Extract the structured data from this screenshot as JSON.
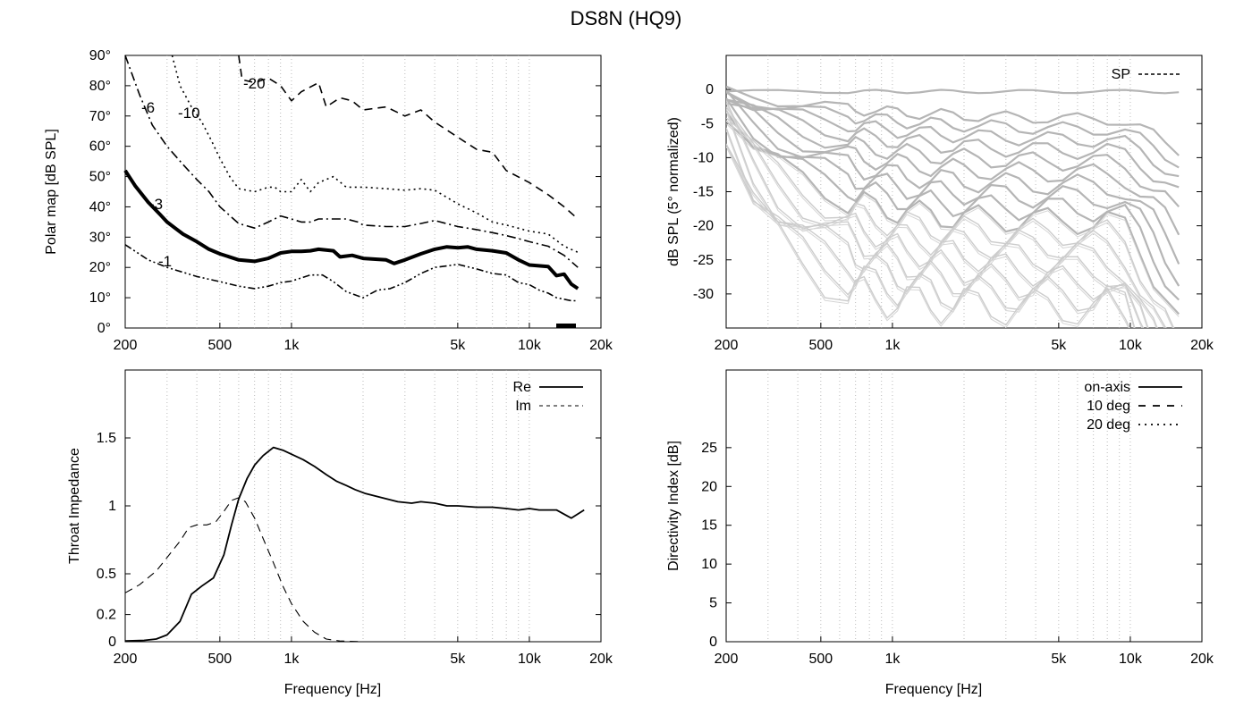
{
  "figure_title": "DS8N (HQ9)",
  "x_ticks": [
    {
      "v": 200,
      "label": "200"
    },
    {
      "v": 500,
      "label": "500"
    },
    {
      "v": 1000,
      "label": "1k"
    },
    {
      "v": 5000,
      "label": "5k"
    },
    {
      "v": 10000,
      "label": "10k"
    },
    {
      "v": 20000,
      "label": "20k"
    }
  ],
  "chart_data": [
    {
      "id": "polar",
      "type": "line",
      "title": "",
      "xlabel": "",
      "ylabel": "Polar map [dB SPL]",
      "xscale": "log",
      "xlim": [
        200,
        20000
      ],
      "ylim": [
        0,
        90
      ],
      "yticks": [
        "0°",
        "10°",
        "20°",
        "30°",
        "40°",
        "50°",
        "60°",
        "70°",
        "80°",
        "90°"
      ],
      "contour_labels": [
        "-1",
        "-3",
        "-6",
        "-10",
        "-20"
      ],
      "series": [
        {
          "name": "-1",
          "style": "dash-dot-dot",
          "points": [
            [
              200,
              27.5
            ],
            [
              250,
              22.5
            ],
            [
              300,
              20
            ],
            [
              400,
              17
            ],
            [
              500,
              15.3
            ],
            [
              600,
              13.8
            ],
            [
              700,
              13
            ],
            [
              800,
              13.8
            ],
            [
              900,
              15
            ],
            [
              1000,
              15.5
            ],
            [
              1200,
              17.5
            ],
            [
              1350,
              17.5
            ],
            [
              1500,
              15.3
            ],
            [
              1700,
              12
            ],
            [
              2000,
              10
            ],
            [
              2300,
              12.5
            ],
            [
              2600,
              13
            ],
            [
              3000,
              15
            ],
            [
              3500,
              18
            ],
            [
              4000,
              20
            ],
            [
              4500,
              20.5
            ],
            [
              5000,
              21
            ],
            [
              6000,
              19.5
            ],
            [
              7000,
              18
            ],
            [
              8000,
              17.5
            ],
            [
              9000,
              15
            ],
            [
              10000,
              14.3
            ],
            [
              11000,
              12.5
            ],
            [
              12000,
              11.5
            ],
            [
              13000,
              10
            ],
            [
              14000,
              9.5
            ],
            [
              15000,
              9
            ],
            [
              16000,
              9
            ]
          ]
        },
        {
          "name": "-3",
          "style": "solid-thick",
          "points": [
            [
              200,
              52
            ],
            [
              220,
              47
            ],
            [
              250,
              41.5
            ],
            [
              280,
              37.5
            ],
            [
              300,
              35
            ],
            [
              350,
              31
            ],
            [
              400,
              28.5
            ],
            [
              450,
              26
            ],
            [
              500,
              24.5
            ],
            [
              600,
              22.5
            ],
            [
              700,
              22
            ],
            [
              800,
              23
            ],
            [
              900,
              24.8
            ],
            [
              1000,
              25.3
            ],
            [
              1100,
              25.3
            ],
            [
              1200,
              25.5
            ],
            [
              1300,
              26
            ],
            [
              1500,
              25.5
            ],
            [
              1600,
              23.5
            ],
            [
              1800,
              24
            ],
            [
              2000,
              23
            ],
            [
              2500,
              22.5
            ],
            [
              2700,
              21.3
            ],
            [
              3000,
              22.5
            ],
            [
              3500,
              24.5
            ],
            [
              4000,
              26
            ],
            [
              4500,
              26.8
            ],
            [
              5000,
              26.5
            ],
            [
              5500,
              26.8
            ],
            [
              6000,
              26
            ],
            [
              7000,
              25.5
            ],
            [
              8000,
              24.8
            ],
            [
              9000,
              22.5
            ],
            [
              10000,
              20.8
            ],
            [
              12000,
              20.3
            ],
            [
              13000,
              17.3
            ],
            [
              14000,
              17.8
            ],
            [
              15000,
              14.5
            ],
            [
              16000,
              13
            ]
          ]
        },
        {
          "name": "-6",
          "style": "dash-dot",
          "points": [
            [
              200,
              90
            ],
            [
              230,
              77
            ],
            [
              260,
              67
            ],
            [
              300,
              60
            ],
            [
              350,
              54
            ],
            [
              400,
              49
            ],
            [
              450,
              45
            ],
            [
              500,
              40
            ],
            [
              600,
              34.5
            ],
            [
              700,
              33
            ],
            [
              800,
              35
            ],
            [
              900,
              37
            ],
            [
              1000,
              36
            ],
            [
              1100,
              35
            ],
            [
              1200,
              35
            ],
            [
              1300,
              36
            ],
            [
              1500,
              36
            ],
            [
              1700,
              36
            ],
            [
              1900,
              35
            ],
            [
              2000,
              34
            ],
            [
              2500,
              33.5
            ],
            [
              3000,
              33.5
            ],
            [
              3500,
              34.5
            ],
            [
              4000,
              35.5
            ],
            [
              5000,
              33.5
            ],
            [
              6000,
              32.5
            ],
            [
              7000,
              31.5
            ],
            [
              8000,
              30.5
            ],
            [
              9000,
              29.5
            ],
            [
              10000,
              28.5
            ],
            [
              12000,
              27
            ],
            [
              14000,
              24
            ],
            [
              16000,
              20
            ]
          ]
        },
        {
          "name": "-10",
          "style": "dotted",
          "points": [
            [
              315,
              90
            ],
            [
              340,
              80
            ],
            [
              380,
              73
            ],
            [
              420,
              68
            ],
            [
              460,
              62
            ],
            [
              500,
              56
            ],
            [
              550,
              50
            ],
            [
              600,
              46
            ],
            [
              700,
              45
            ],
            [
              800,
              46.5
            ],
            [
              850,
              46.5
            ],
            [
              900,
              45
            ],
            [
              1000,
              45
            ],
            [
              1100,
              49
            ],
            [
              1200,
              45
            ],
            [
              1300,
              48
            ],
            [
              1500,
              50
            ],
            [
              1700,
              46.5
            ],
            [
              2000,
              46.5
            ],
            [
              2500,
              46
            ],
            [
              3000,
              45.5
            ],
            [
              3500,
              46
            ],
            [
              4000,
              45.5
            ],
            [
              5000,
              41
            ],
            [
              6000,
              38
            ],
            [
              7000,
              35
            ],
            [
              8000,
              34
            ],
            [
              10000,
              32
            ],
            [
              12000,
              31
            ],
            [
              14000,
              27
            ],
            [
              16000,
              25
            ]
          ]
        },
        {
          "name": "-20",
          "style": "dashed",
          "points": [
            [
              600,
              90
            ],
            [
              620,
              82
            ],
            [
              700,
              81
            ],
            [
              800,
              82.5
            ],
            [
              900,
              80
            ],
            [
              1000,
              75
            ],
            [
              1100,
              78
            ],
            [
              1300,
              81
            ],
            [
              1400,
              73
            ],
            [
              1600,
              76
            ],
            [
              1800,
              75
            ],
            [
              2000,
              72
            ],
            [
              2500,
              73
            ],
            [
              3000,
              70
            ],
            [
              3500,
              72
            ],
            [
              4000,
              68
            ],
            [
              5000,
              63
            ],
            [
              6000,
              59
            ],
            [
              7000,
              58
            ],
            [
              8000,
              52
            ],
            [
              10000,
              48
            ],
            [
              12000,
              44
            ],
            [
              14000,
              40
            ],
            [
              16000,
              36
            ]
          ]
        }
      ]
    },
    {
      "id": "spl",
      "type": "line",
      "title": "",
      "xlabel": "",
      "ylabel": "dB SPL (5° normalized)",
      "xscale": "log",
      "xlim": [
        200,
        20000
      ],
      "ylim": [
        -35,
        5
      ],
      "yticks": [
        "0",
        "-5",
        "-10",
        "-15",
        "-20",
        "-25",
        "-30"
      ],
      "legend": [
        {
          "name": "SP",
          "style": "dotted"
        }
      ],
      "legend_position": "top-right",
      "series_count": 18,
      "angle_step_deg": 5
    },
    {
      "id": "impedance",
      "type": "line",
      "title": "",
      "xlabel": "Frequency [Hz]",
      "ylabel": "Throat Impedance",
      "xscale": "log",
      "xlim": [
        200,
        20000
      ],
      "ylim": [
        0,
        2
      ],
      "yticks": [
        "0",
        "0.2",
        "0.5",
        "1",
        "1.5"
      ],
      "legend_position": "top-right",
      "series": [
        {
          "name": "Re",
          "style": "solid",
          "points": [
            [
              200,
              0.005
            ],
            [
              240,
              0.01
            ],
            [
              270,
              0.02
            ],
            [
              300,
              0.05
            ],
            [
              340,
              0.15
            ],
            [
              380,
              0.35
            ],
            [
              420,
              0.41
            ],
            [
              470,
              0.47
            ],
            [
              520,
              0.64
            ],
            [
              560,
              0.86
            ],
            [
              600,
              1.05
            ],
            [
              650,
              1.2
            ],
            [
              700,
              1.3
            ],
            [
              760,
              1.37
            ],
            [
              840,
              1.43
            ],
            [
              920,
              1.41
            ],
            [
              1000,
              1.38
            ],
            [
              1120,
              1.34
            ],
            [
              1250,
              1.29
            ],
            [
              1400,
              1.23
            ],
            [
              1550,
              1.18
            ],
            [
              1700,
              1.15
            ],
            [
              1850,
              1.12
            ],
            [
              2050,
              1.09
            ],
            [
              2400,
              1.06
            ],
            [
              2800,
              1.03
            ],
            [
              3200,
              1.02
            ],
            [
              3500,
              1.03
            ],
            [
              4000,
              1.02
            ],
            [
              4500,
              1.0
            ],
            [
              5000,
              1.0
            ],
            [
              6000,
              0.99
            ],
            [
              7000,
              0.99
            ],
            [
              8000,
              0.98
            ],
            [
              9000,
              0.97
            ],
            [
              10000,
              0.98
            ],
            [
              11000,
              0.97
            ],
            [
              13000,
              0.97
            ],
            [
              15000,
              0.91
            ],
            [
              17000,
              0.97
            ]
          ]
        },
        {
          "name": "Im",
          "style": "dashed",
          "points": [
            [
              200,
              0.36
            ],
            [
              230,
              0.42
            ],
            [
              270,
              0.52
            ],
            [
              300,
              0.62
            ],
            [
              340,
              0.74
            ],
            [
              370,
              0.84
            ],
            [
              400,
              0.86
            ],
            [
              440,
              0.86
            ],
            [
              480,
              0.88
            ],
            [
              520,
              0.96
            ],
            [
              560,
              1.04
            ],
            [
              600,
              1.06
            ],
            [
              640,
              1.03
            ],
            [
              700,
              0.91
            ],
            [
              760,
              0.76
            ],
            [
              840,
              0.58
            ],
            [
              920,
              0.41
            ],
            [
              1000,
              0.28
            ],
            [
              1120,
              0.15
            ],
            [
              1250,
              0.07
            ],
            [
              1400,
              0.02
            ],
            [
              1600,
              0.005
            ],
            [
              2000,
              0
            ]
          ]
        }
      ]
    },
    {
      "id": "directivity",
      "type": "line",
      "title": "",
      "xlabel": "Frequency [Hz]",
      "ylabel": "Directivity Index [dB]",
      "xscale": "log",
      "xlim": [
        200,
        20000
      ],
      "ylim": [
        0,
        35
      ],
      "yticks": [
        "0",
        "5",
        "10",
        "15",
        "20",
        "25"
      ],
      "legend_position": "top-right",
      "series": [
        {
          "name": "on-axis",
          "style": "solid",
          "points": []
        },
        {
          "name": "10 deg",
          "style": "dashed",
          "points": []
        },
        {
          "name": "20 deg",
          "style": "dotted",
          "points": []
        }
      ]
    }
  ]
}
